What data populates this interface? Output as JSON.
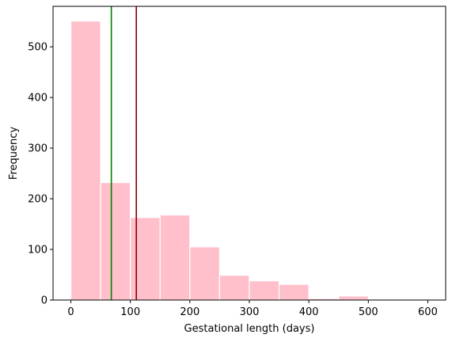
{
  "chart_data": {
    "type": "bar",
    "subtype": "histogram",
    "xlabel": "Gestational length (days)",
    "ylabel": "Frequency",
    "xlim": [
      -30,
      630
    ],
    "ylim": [
      0,
      580
    ],
    "xticks": [
      0,
      100,
      200,
      300,
      400,
      500,
      600
    ],
    "yticks": [
      0,
      100,
      200,
      300,
      400,
      500
    ],
    "bins": [
      {
        "start": 0,
        "end": 50,
        "value": 551
      },
      {
        "start": 50,
        "end": 100,
        "value": 232
      },
      {
        "start": 100,
        "end": 150,
        "value": 163
      },
      {
        "start": 150,
        "end": 200,
        "value": 168
      },
      {
        "start": 200,
        "end": 250,
        "value": 105
      },
      {
        "start": 250,
        "end": 300,
        "value": 49
      },
      {
        "start": 300,
        "end": 350,
        "value": 38
      },
      {
        "start": 350,
        "end": 400,
        "value": 31
      },
      {
        "start": 400,
        "end": 450,
        "value": 3
      },
      {
        "start": 450,
        "end": 500,
        "value": 8
      },
      {
        "start": 500,
        "end": 550,
        "value": 1
      },
      {
        "start": 550,
        "end": 600,
        "value": 1
      }
    ],
    "vlines": [
      {
        "x": 68,
        "color": "#008000"
      },
      {
        "x": 110,
        "color": "#8b0000"
      }
    ],
    "bar_color": "#ffc0cb",
    "bar_edge_color": "#ffffff",
    "grid": false,
    "legend": "none"
  }
}
